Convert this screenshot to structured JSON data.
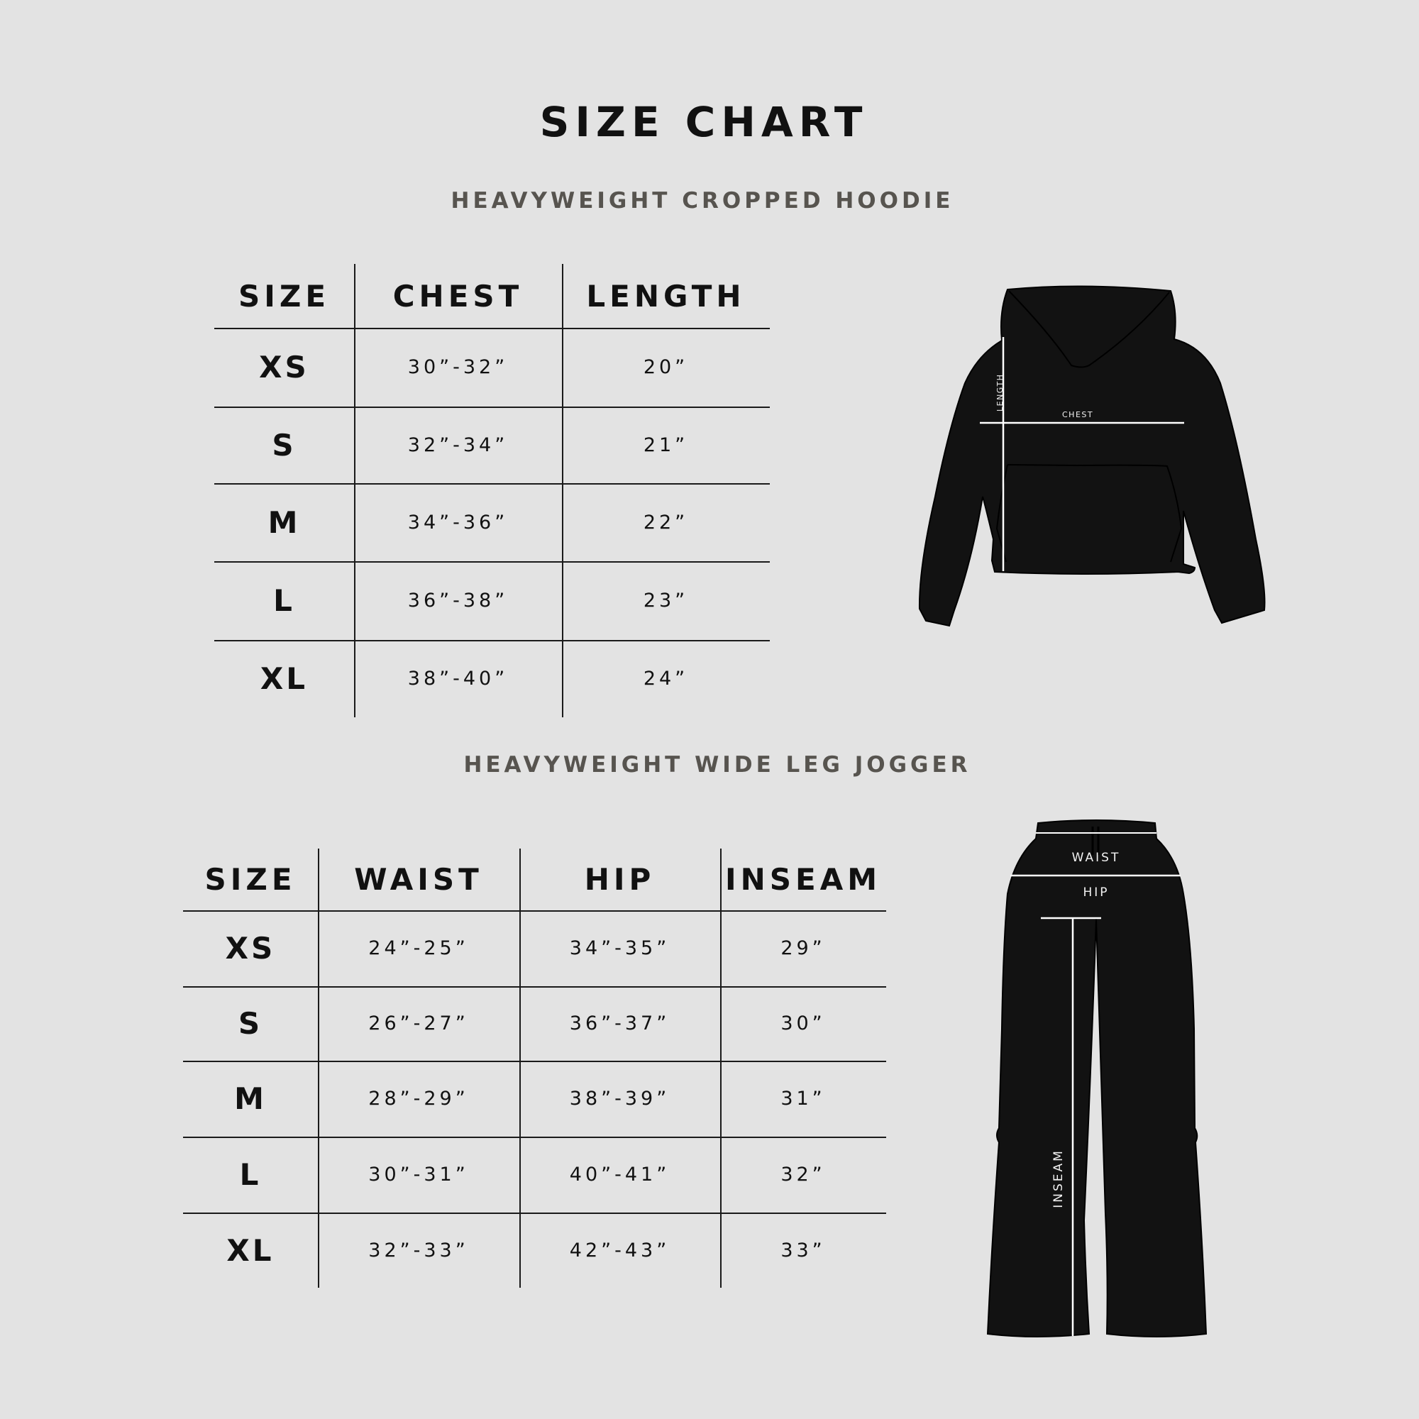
{
  "title": "SIZE CHART",
  "hoodie": {
    "subtitle": "HEAVYWEIGHT CROPPED HOODIE",
    "headers": [
      "SIZE",
      "CHEST",
      "LENGTH"
    ],
    "rows": [
      [
        "XS",
        "30”-32”",
        "20”"
      ],
      [
        "S",
        "32”-34”",
        "21”"
      ],
      [
        "M",
        "34”-36”",
        "22”"
      ],
      [
        "L",
        "36”-38”",
        "23”"
      ],
      [
        "XL",
        "38”-40”",
        "24”"
      ]
    ],
    "diagram_labels": {
      "length": "LENGTH",
      "chest": "CHEST"
    }
  },
  "jogger": {
    "subtitle": "HEAVYWEIGHT WIDE LEG JOGGER",
    "headers": [
      "SIZE",
      "WAIST",
      "HIP",
      "INSEAM"
    ],
    "rows": [
      [
        "XS",
        "24”-25”",
        "34”-35”",
        "29”"
      ],
      [
        "S",
        "26”-27”",
        "36”-37”",
        "30”"
      ],
      [
        "M",
        "28”-29”",
        "38”-39”",
        "31”"
      ],
      [
        "L",
        "30”-31”",
        "40”-41”",
        "32”"
      ],
      [
        "XL",
        "32”-33”",
        "42”-43”",
        "33”"
      ]
    ],
    "diagram_labels": {
      "waist": "WAIST",
      "hip": "HIP",
      "inseam": "INSEAM"
    }
  },
  "colors": {
    "background": "#e3e3e3",
    "text": "#111111",
    "subtitle": "#57544f",
    "garment": "#121212"
  }
}
